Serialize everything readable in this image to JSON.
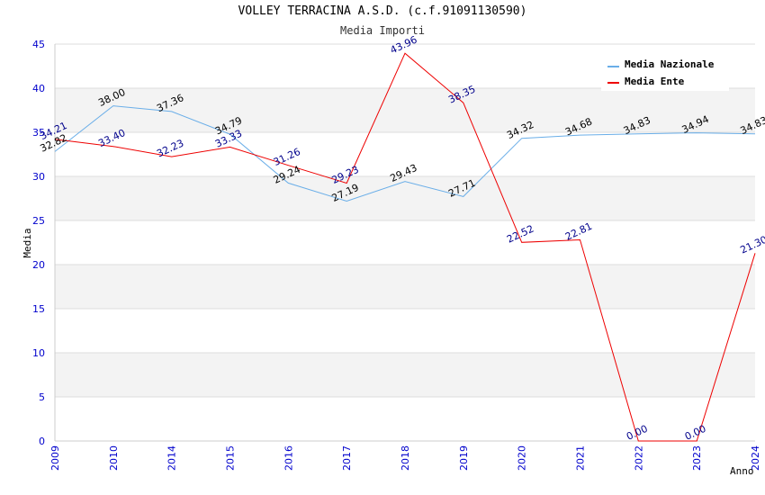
{
  "chart_data": {
    "type": "line",
    "title": "VOLLEY TERRACINA A.S.D. (c.f.91091130590)",
    "subtitle": "Media Importi",
    "xlabel": "Anno",
    "ylabel": "Media",
    "ylim": [
      0,
      45
    ],
    "yticks": [
      "0",
      "5",
      "10",
      "15",
      "20",
      "25",
      "30",
      "35",
      "40",
      "45"
    ],
    "categories": [
      "2009",
      "2010",
      "2014",
      "2015",
      "2016",
      "2017",
      "2018",
      "2019",
      "2020",
      "2021",
      "2022",
      "2023",
      "2024"
    ],
    "legend_position": "top-right",
    "series": [
      {
        "name": "Media Nazionale",
        "color": "#6aaee8",
        "values": [
          32.82,
          38.0,
          37.36,
          34.79,
          29.24,
          27.19,
          29.43,
          27.71,
          34.32,
          34.68,
          34.83,
          34.94,
          34.83
        ],
        "labels": [
          "32.82",
          "38.00",
          "37.36",
          "34.79",
          "29.24",
          "27.19",
          "29.43",
          "27.71",
          "34.32",
          "34.68",
          "34.83",
          "34.94",
          "34.83"
        ]
      },
      {
        "name": "Media Ente",
        "color": "#ee0000",
        "values": [
          34.21,
          33.4,
          32.23,
          33.33,
          31.26,
          29.23,
          43.96,
          38.35,
          22.52,
          22.81,
          0.0,
          0.0,
          21.3
        ],
        "labels": [
          "34.21",
          "33.40",
          "32.23",
          "33.33",
          "31.26",
          "29.23",
          "43.96",
          "38.35",
          "22.52",
          "22.81",
          "0.00",
          "0.00",
          "21.30"
        ]
      }
    ]
  }
}
